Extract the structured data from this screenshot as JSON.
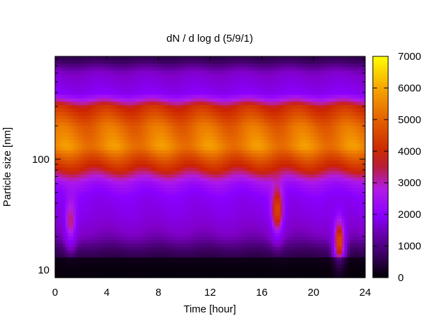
{
  "chart_data": {
    "type": "heatmap",
    "title": "dN / d log d (5/9/1)",
    "xlabel": "Time [hour]",
    "ylabel": "Particle size [nm]",
    "xlim": [
      0,
      24
    ],
    "xticks": [
      0,
      4,
      8,
      12,
      16,
      20,
      24
    ],
    "xtick_labels": [
      "0",
      "4",
      "8",
      "12",
      "16",
      "20",
      "24"
    ],
    "ylim": [
      8.5,
      850
    ],
    "yscale": "log",
    "yticks": [
      10,
      100
    ],
    "ytick_labels": [
      "10",
      "100"
    ],
    "colorbar": {
      "range": [
        0,
        7000
      ],
      "ticks": [
        0,
        1000,
        2000,
        3000,
        4000,
        5000,
        6000,
        7000
      ],
      "tick_labels": [
        "0",
        "1000",
        "2000",
        "3000",
        "4000",
        "5000",
        "6000",
        "7000"
      ],
      "palette": [
        "#000000",
        "#3a005e",
        "#8000c8",
        "#8a00ff",
        "#b21ce6",
        "#cc2200",
        "#dd5200",
        "#f08800",
        "#ffd000",
        "#ffff00"
      ]
    },
    "profile": {
      "diameters_nm": [
        10,
        15,
        20,
        30,
        45,
        60,
        80,
        100,
        130,
        200,
        300,
        400,
        600,
        800
      ],
      "typical_values": [
        300,
        800,
        1400,
        1900,
        2200,
        2700,
        3800,
        4500,
        5400,
        5000,
        4000,
        2200,
        1600,
        700
      ]
    },
    "features": [
      {
        "time_h": 1.2,
        "diameter_nm": 28,
        "value": 3500
      },
      {
        "time_h": 17.2,
        "diameter_nm": 35,
        "value": 4500
      },
      {
        "time_h": 22,
        "diameter_nm": 18,
        "value": 4600
      }
    ],
    "grid": false,
    "legend": "none"
  }
}
